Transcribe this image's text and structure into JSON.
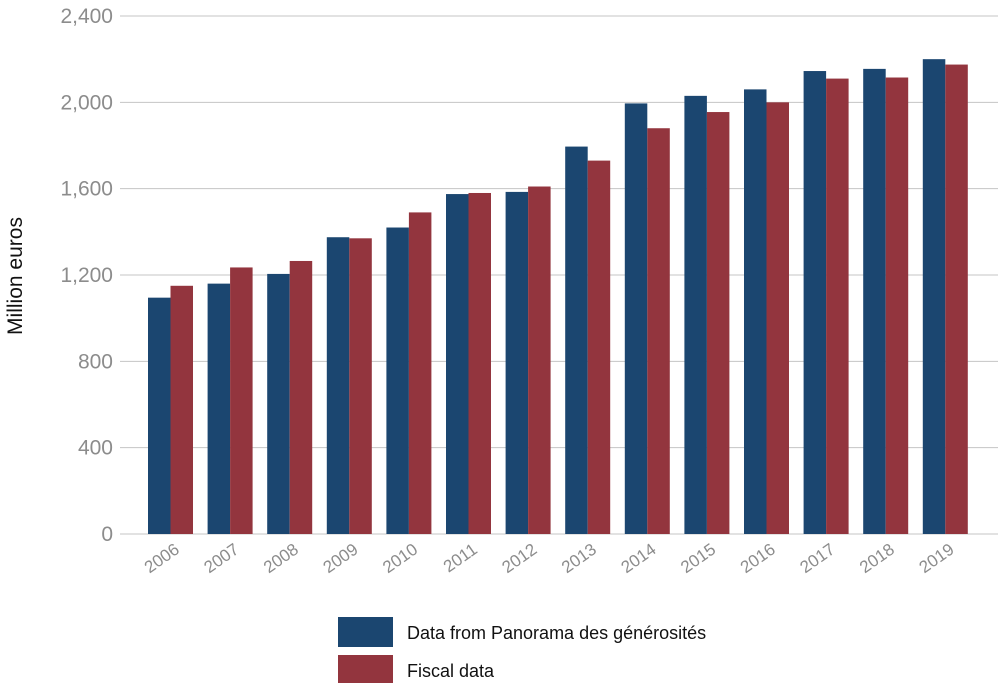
{
  "chart_data": {
    "type": "bar",
    "title": "",
    "xlabel": "",
    "ylabel": "Million euros",
    "ylim": [
      0,
      2400
    ],
    "yticks": [
      0,
      400,
      800,
      1200,
      1600,
      2000,
      2400
    ],
    "ytick_labels": [
      "0",
      "400",
      "800",
      "1,200",
      "1,600",
      "2,000",
      "2,400"
    ],
    "grid": true,
    "legend_position": "bottom",
    "categories": [
      "2006",
      "2007",
      "2008",
      "2009",
      "2010",
      "2011",
      "2012",
      "2013",
      "2014",
      "2015",
      "2016",
      "2017",
      "2018",
      "2019"
    ],
    "series": [
      {
        "name": "Data from Panorama des générosités",
        "color": "#1b4670",
        "values": [
          1095,
          1160,
          1205,
          1375,
          1420,
          1575,
          1585,
          1795,
          1995,
          2030,
          2060,
          2145,
          2155,
          2200
        ]
      },
      {
        "name": "Fiscal data",
        "color": "#93353e",
        "values": [
          1150,
          1235,
          1265,
          1370,
          1490,
          1580,
          1610,
          1730,
          1880,
          1955,
          2000,
          2110,
          2115,
          2175
        ]
      }
    ]
  }
}
